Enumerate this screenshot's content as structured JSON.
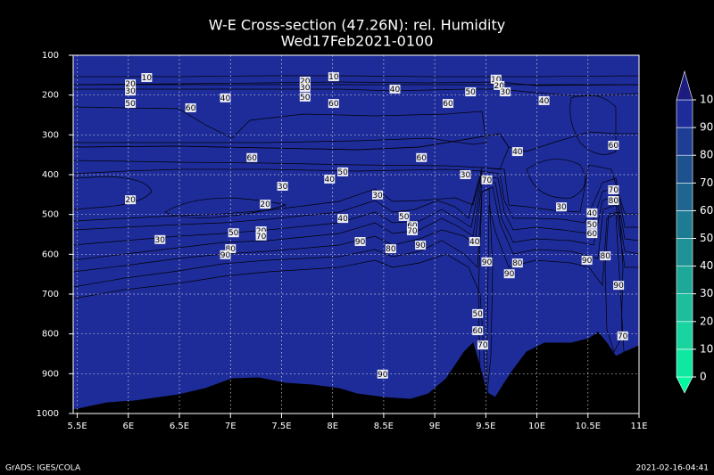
{
  "chart_data": {
    "type": "contour",
    "title": "W-E Cross-section (47.26N): rel. Humidity",
    "subtitle": "Wed17Feb2021-0100",
    "xlim": [
      5.46,
      11
    ],
    "xticks": [
      {
        "value": 5.5,
        "label": "5.5E"
      },
      {
        "value": 6,
        "label": "6E"
      },
      {
        "value": 6.5,
        "label": "6.5E"
      },
      {
        "value": 7,
        "label": "7E"
      },
      {
        "value": 7.5,
        "label": "7.5E"
      },
      {
        "value": 8,
        "label": "8E"
      },
      {
        "value": 8.5,
        "label": "8.5E"
      },
      {
        "value": 9,
        "label": "9E"
      },
      {
        "value": 9.5,
        "label": "9.5E"
      },
      {
        "value": 10,
        "label": "10E"
      },
      {
        "value": 10.5,
        "label": "10.5E"
      },
      {
        "value": 11,
        "label": "11E"
      }
    ],
    "ylim": [
      1000,
      100
    ],
    "yticks": [
      100,
      200,
      300,
      400,
      500,
      600,
      700,
      800,
      900,
      1000
    ],
    "grid": true,
    "colorbar": {
      "levels": [
        0,
        10,
        20,
        30,
        40,
        50,
        60,
        70,
        80,
        90,
        100
      ],
      "colors": [
        "#00f8a0",
        "#0ee8a0",
        "#1ad4a0",
        "#1ebe9c",
        "#1ea898",
        "#1e9294",
        "#1e7c92",
        "#1e6690",
        "#1e528e",
        "#1e3e96",
        "#1e2c9a",
        "#1c1c80"
      ]
    },
    "contour_labels": [
      {
        "lon": 6.18,
        "p": 156,
        "value": 10
      },
      {
        "lon": 6.02,
        "p": 172,
        "value": 20
      },
      {
        "lon": 6.02,
        "p": 190,
        "value": 30
      },
      {
        "lon": 6.02,
        "p": 221,
        "value": 50
      },
      {
        "lon": 6.61,
        "p": 232,
        "value": 60
      },
      {
        "lon": 6.95,
        "p": 207,
        "value": 40
      },
      {
        "lon": 7.73,
        "p": 165,
        "value": 20
      },
      {
        "lon": 7.73,
        "p": 181,
        "value": 30
      },
      {
        "lon": 8.01,
        "p": 154,
        "value": 10
      },
      {
        "lon": 7.73,
        "p": 205,
        "value": 50
      },
      {
        "lon": 8.01,
        "p": 221,
        "value": 60
      },
      {
        "lon": 8.61,
        "p": 185,
        "value": 40
      },
      {
        "lon": 9.35,
        "p": 192,
        "value": 50
      },
      {
        "lon": 9.13,
        "p": 221,
        "value": 60
      },
      {
        "lon": 9.6,
        "p": 160,
        "value": 10
      },
      {
        "lon": 9.63,
        "p": 176,
        "value": 20
      },
      {
        "lon": 9.69,
        "p": 192,
        "value": 30
      },
      {
        "lon": 10.07,
        "p": 214,
        "value": 40
      },
      {
        "lon": 10.75,
        "p": 326,
        "value": 60
      },
      {
        "lon": 7.21,
        "p": 357,
        "value": 60
      },
      {
        "lon": 9.81,
        "p": 342,
        "value": 40
      },
      {
        "lon": 8.87,
        "p": 357,
        "value": 60
      },
      {
        "lon": 8.1,
        "p": 393,
        "value": 50
      },
      {
        "lon": 7.97,
        "p": 411,
        "value": 40
      },
      {
        "lon": 9.3,
        "p": 400,
        "value": 30
      },
      {
        "lon": 9.51,
        "p": 413,
        "value": 70
      },
      {
        "lon": 7.51,
        "p": 429,
        "value": 30
      },
      {
        "lon": 6.02,
        "p": 463,
        "value": 20
      },
      {
        "lon": 8.44,
        "p": 451,
        "value": 30
      },
      {
        "lon": 7.34,
        "p": 474,
        "value": 20
      },
      {
        "lon": 10.24,
        "p": 481,
        "value": 30
      },
      {
        "lon": 10.75,
        "p": 438,
        "value": 70
      },
      {
        "lon": 10.75,
        "p": 465,
        "value": 80
      },
      {
        "lon": 10.54,
        "p": 496,
        "value": 40
      },
      {
        "lon": 10.54,
        "p": 525,
        "value": 50
      },
      {
        "lon": 10.54,
        "p": 548,
        "value": 60
      },
      {
        "lon": 8.1,
        "p": 510,
        "value": 40
      },
      {
        "lon": 8.7,
        "p": 505,
        "value": 50
      },
      {
        "lon": 8.78,
        "p": 528,
        "value": 60
      },
      {
        "lon": 8.78,
        "p": 541,
        "value": 70
      },
      {
        "lon": 7.3,
        "p": 541,
        "value": 20
      },
      {
        "lon": 7.3,
        "p": 554,
        "value": 70
      },
      {
        "lon": 7.03,
        "p": 546,
        "value": 50
      },
      {
        "lon": 6.31,
        "p": 563,
        "value": 30
      },
      {
        "lon": 8.27,
        "p": 568,
        "value": 90
      },
      {
        "lon": 8.57,
        "p": 586,
        "value": 80
      },
      {
        "lon": 8.86,
        "p": 577,
        "value": 90
      },
      {
        "lon": 9.39,
        "p": 568,
        "value": 40
      },
      {
        "lon": 7.0,
        "p": 586,
        "value": 80
      },
      {
        "lon": 6.95,
        "p": 601,
        "value": 90
      },
      {
        "lon": 9.51,
        "p": 619,
        "value": 90
      },
      {
        "lon": 9.81,
        "p": 622,
        "value": 80
      },
      {
        "lon": 9.73,
        "p": 649,
        "value": 90
      },
      {
        "lon": 10.49,
        "p": 615,
        "value": 90
      },
      {
        "lon": 10.67,
        "p": 604,
        "value": 80
      },
      {
        "lon": 10.8,
        "p": 678,
        "value": 90
      },
      {
        "lon": 9.42,
        "p": 749,
        "value": 50
      },
      {
        "lon": 9.42,
        "p": 792,
        "value": 60
      },
      {
        "lon": 9.47,
        "p": 828,
        "value": 70
      },
      {
        "lon": 10.84,
        "p": 805,
        "value": 70
      },
      {
        "lon": 8.49,
        "p": 901,
        "value": 90
      }
    ],
    "credit": "GrADS: IGES/COLA",
    "timestamp": "2021-02-16-04:41"
  }
}
